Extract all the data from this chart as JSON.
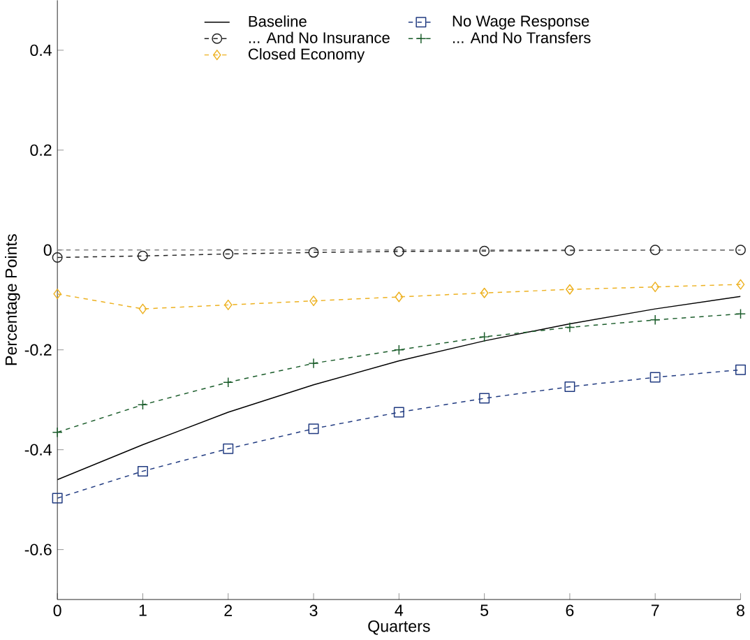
{
  "chart_data": {
    "type": "line",
    "xlabel": "Quarters",
    "ylabel": "Percentage Points",
    "x": [
      0,
      1,
      2,
      3,
      4,
      5,
      6,
      7,
      8
    ],
    "xlim": [
      0,
      8
    ],
    "xticks": [
      0,
      1,
      2,
      3,
      4,
      5,
      6,
      7,
      8
    ],
    "ylim": [
      -0.7,
      0.5
    ],
    "yticks": [
      -0.6,
      -0.4,
      -0.2,
      0,
      0.2,
      0.4
    ],
    "legend": "top",
    "grid": false,
    "ref_lines": [
      {
        "axis": "y",
        "value": 0,
        "color": "#808080",
        "line_style": "dashed"
      }
    ],
    "series": [
      {
        "name": "Baseline",
        "color": "#000000",
        "line_style": "solid",
        "marker": "none",
        "values": [
          -0.46,
          -0.39,
          -0.325,
          -0.27,
          -0.222,
          -0.182,
          -0.148,
          -0.118,
          -0.093
        ]
      },
      {
        "name": "No Wage Response",
        "color": "#203a80",
        "line_style": "dashed",
        "marker": "square",
        "values": [
          -0.497,
          -0.443,
          -0.398,
          -0.358,
          -0.325,
          -0.297,
          -0.274,
          -0.255,
          -0.24
        ]
      },
      {
        "name": "... And No Insurance",
        "color": "#222222",
        "line_style": "dashed",
        "marker": "circle",
        "values": [
          -0.015,
          -0.012,
          -0.008,
          -0.005,
          -0.003,
          -0.002,
          -0.001,
          0,
          0
        ]
      },
      {
        "name": "... And No Transfers",
        "color": "#1a5c2a",
        "line_style": "dashed",
        "marker": "cross",
        "values": [
          -0.365,
          -0.31,
          -0.265,
          -0.227,
          -0.2,
          -0.174,
          -0.155,
          -0.14,
          -0.128
        ]
      },
      {
        "name": "Closed Economy",
        "color": "#edb120",
        "line_style": "dashed",
        "marker": "diamond",
        "values": [
          -0.088,
          -0.118,
          -0.11,
          -0.102,
          -0.094,
          -0.086,
          -0.079,
          -0.074,
          -0.069
        ]
      }
    ]
  }
}
